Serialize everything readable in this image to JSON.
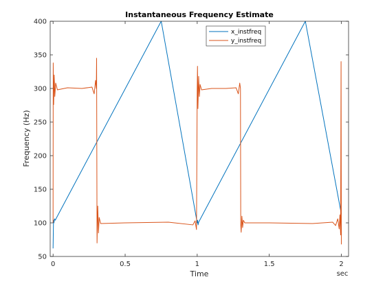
{
  "chart_data": {
    "type": "line",
    "title": "Instantaneous Frequency Estimate",
    "xlabel": "Time",
    "xunit": "sec",
    "ylabel": "Frequency (Hz)",
    "xlim": [
      -0.02,
      2.05
    ],
    "ylim": [
      50,
      400
    ],
    "xticks": [
      0,
      0.5,
      1,
      1.5,
      2
    ],
    "xtick_labels": [
      "0",
      "0.5",
      "1",
      "1.5",
      "2"
    ],
    "yticks": [
      50,
      100,
      150,
      200,
      250,
      300,
      350,
      400
    ],
    "ytick_labels": [
      "50",
      "100",
      "150",
      "200",
      "250",
      "300",
      "350",
      "400"
    ],
    "grid": false,
    "legend_position": "top-right",
    "series": [
      {
        "name": "x_instfreq",
        "color": "#0072BD",
        "x": [
          0,
          0.003,
          0.006,
          0.01,
          0.015,
          0.75,
          0.752,
          1.0,
          1.003,
          1.006,
          1.01,
          1.75,
          1.752,
          2.0
        ],
        "y": [
          62,
          104,
          100,
          106,
          104,
          400,
          398,
          100,
          104,
          97,
          101,
          400,
          398,
          113
        ]
      },
      {
        "name": "y_instfreq",
        "color": "#D95319",
        "x": [
          0,
          0.001,
          0.004,
          0.008,
          0.012,
          0.018,
          0.03,
          0.1,
          0.2,
          0.27,
          0.285,
          0.295,
          0.3,
          0.302,
          0.305,
          0.31,
          0.315,
          0.32,
          0.33,
          0.5,
          0.8,
          0.97,
          0.985,
          0.995,
          1.0,
          1.002,
          1.005,
          1.01,
          1.015,
          1.02,
          1.03,
          1.1,
          1.2,
          1.27,
          1.285,
          1.295,
          1.3,
          1.302,
          1.305,
          1.31,
          1.315,
          1.32,
          1.33,
          1.5,
          1.8,
          1.94,
          1.96,
          1.975,
          1.985,
          1.99,
          1.995,
          1.998,
          2.0
        ],
        "y": [
          100,
          338,
          276,
          320,
          288,
          308,
          298,
          301,
          300,
          302,
          292,
          312,
          300,
          345,
          70,
          125,
          85,
          108,
          99,
          100,
          101,
          97,
          103,
          90,
          300,
          333,
          270,
          318,
          288,
          306,
          298,
          300,
          300,
          301,
          292,
          308,
          300,
          98,
          86,
          110,
          93,
          104,
          100,
          100,
          99,
          101,
          96,
          106,
          91,
          112,
          82,
          340,
          68
        ]
      }
    ]
  }
}
